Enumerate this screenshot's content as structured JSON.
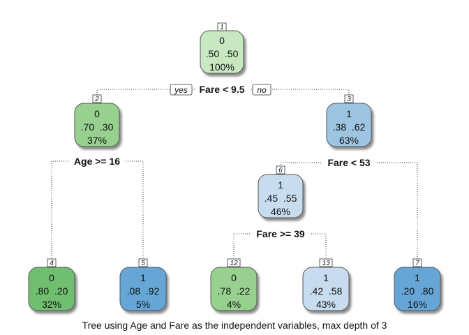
{
  "caption": "Tree using Age and Fare as the independent variables, max depth of 3",
  "yes_label": "yes",
  "no_label": "no",
  "colors": {
    "class0_dark": "#6fbf6f",
    "class0_mid": "#97d08f",
    "class0_light": "#c8e8c2",
    "class1_dark": "#65a6d6",
    "class1_mid": "#9dc4e1",
    "class1_light": "#c8dcf0"
  },
  "nodes": [
    {
      "id": "1",
      "class": "0",
      "probs": ".50  .50",
      "pct": "100%",
      "split": "Fare < 9.5"
    },
    {
      "id": "2",
      "class": "0",
      "probs": ".70  .30",
      "pct": "37%",
      "split": "Age >= 16"
    },
    {
      "id": "3",
      "class": "1",
      "probs": ".38  .62",
      "pct": "63%",
      "split": "Fare < 53"
    },
    {
      "id": "6",
      "class": "1",
      "probs": ".45  .55",
      "pct": "46%",
      "split": "Fare >= 39"
    },
    {
      "id": "4",
      "class": "0",
      "probs": ".80  .20",
      "pct": "32%"
    },
    {
      "id": "5",
      "class": "1",
      "probs": ".08  .92",
      "pct": "5%"
    },
    {
      "id": "12",
      "class": "0",
      "probs": ".78  .22",
      "pct": "4%"
    },
    {
      "id": "13",
      "class": "1",
      "probs": ".42  .58",
      "pct": "43%"
    },
    {
      "id": "7",
      "class": "1",
      "probs": ".20  .80",
      "pct": "16%"
    }
  ]
}
